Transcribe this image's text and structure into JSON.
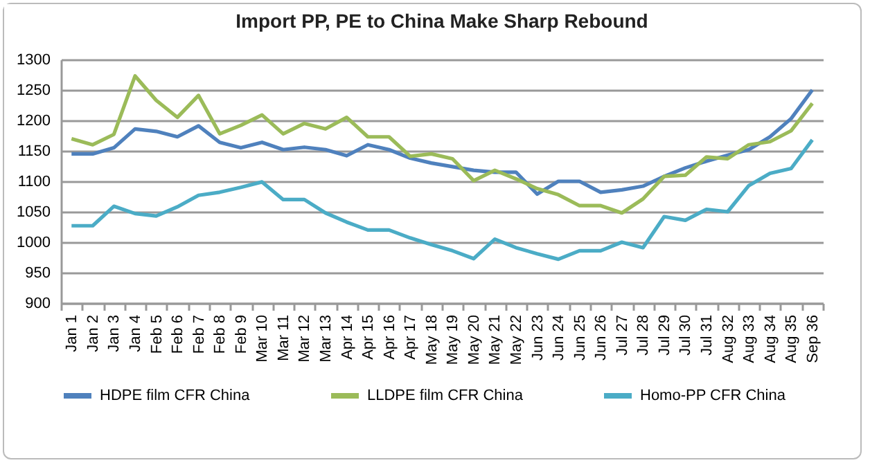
{
  "chart_data": {
    "type": "line",
    "title": "Import PP, PE to China Make Sharp Rebound",
    "categories": [
      "Jan 1",
      "Jan 2",
      "Jan 3",
      "Jan 4",
      "Feb 5",
      "Feb 6",
      "Feb 7",
      "Feb 8",
      "Feb 9",
      "Mar 10",
      "Mar 11",
      "Mar 12",
      "Mar 13",
      "Apr 14",
      "Apr 15",
      "Apr 16",
      "Apr 17",
      "May 18",
      "May 19",
      "May 20",
      "May 21",
      "May 22",
      "Jun 23",
      "Jun 24",
      "Jun 25",
      "Jun 26",
      "Jul 27",
      "Jul 28",
      "Jul 29",
      "Jul 30",
      "Jul 31",
      "Aug 32",
      "Aug 33",
      "Aug 34",
      "Aug 35",
      "Sep 36"
    ],
    "series": [
      {
        "name": "HDPE film CFR China",
        "color": "#4f81bd",
        "values": [
          1145,
          1145,
          1155,
          1186,
          1182,
          1173,
          1191,
          1164,
          1155,
          1164,
          1152,
          1156,
          1152,
          1142,
          1160,
          1152,
          1138,
          1130,
          1124,
          1118,
          1115,
          1115,
          1079,
          1100,
          1100,
          1082,
          1086,
          1092,
          1108,
          1122,
          1133,
          1143,
          1152,
          1173,
          1203,
          1250
        ]
      },
      {
        "name": "LLDPE film CFR China",
        "color": "#9bbb59",
        "values": [
          1170,
          1160,
          1177,
          1273,
          1233,
          1205,
          1241,
          1178,
          1192,
          1209,
          1178,
          1195,
          1186,
          1205,
          1173,
          1173,
          1141,
          1145,
          1137,
          1101,
          1118,
          1104,
          1088,
          1078,
          1060,
          1060,
          1048,
          1071,
          1108,
          1110,
          1140,
          1137,
          1160,
          1165,
          1183,
          1228
        ]
      },
      {
        "name": "Homo-PP CFR China",
        "color": "#4bacc6",
        "values": [
          1027,
          1027,
          1059,
          1047,
          1043,
          1058,
          1077,
          1082,
          1090,
          1099,
          1070,
          1070,
          1048,
          1033,
          1020,
          1020,
          1007,
          996,
          986,
          973,
          1005,
          991,
          981,
          972,
          986,
          986,
          1000,
          991,
          1042,
          1036,
          1054,
          1050,
          1093,
          1113,
          1121,
          1168
        ]
      }
    ],
    "ylim": [
      900,
      1300
    ],
    "yticks": [
      900,
      950,
      1000,
      1050,
      1100,
      1150,
      1200,
      1250,
      1300
    ],
    "grid": "y",
    "legend": "bottom",
    "line_style": "solid"
  }
}
